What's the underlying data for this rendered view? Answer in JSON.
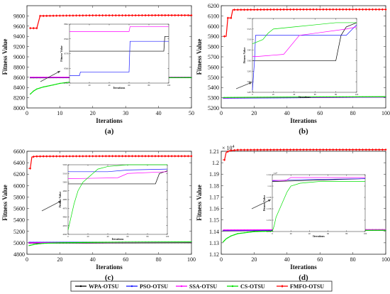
{
  "legend": [
    "WPA-OTSU",
    "PSO-OTSU",
    "SSA-OTSU",
    "CS-OTSU",
    "FMFO-OTSU"
  ],
  "colors": {
    "WPA-OTSU": "#000000",
    "PSO-OTSU": "#1a1aff",
    "SSA-OTSU": "#ff00ff",
    "CS-OTSU": "#00e000",
    "FMFO-OTSU": "#ff0000"
  },
  "chart_data": [
    {
      "type": "line",
      "panel_label": "(a)",
      "xlabel": "Iterations",
      "ylabel": "Fitness Value",
      "xlim": [
        0,
        50
      ],
      "ylim": [
        8000,
        10000
      ],
      "xticks": [
        0,
        10,
        20,
        30,
        40,
        50
      ],
      "yticks": [
        8000,
        8200,
        8400,
        8600,
        8800,
        9000,
        9200,
        9400,
        9600,
        9800
      ],
      "exponent": "",
      "series": [
        {
          "name": "WPA-OTSU",
          "x": [
            1,
            10,
            20,
            30,
            40,
            50
          ],
          "y": [
            8590,
            8591,
            8591,
            8592,
            8592,
            8593
          ]
        },
        {
          "name": "PSO-OTSU",
          "x": [
            1,
            10,
            20,
            30,
            40,
            50
          ],
          "y": [
            8597,
            8597,
            8597,
            8598,
            8598,
            8598
          ]
        },
        {
          "name": "SSA-OTSU",
          "x": [
            1,
            10,
            20,
            30,
            40,
            50
          ],
          "y": [
            8599,
            8599,
            8600,
            8600,
            8601,
            8601
          ]
        },
        {
          "name": "CS-OTSU",
          "x": [
            1,
            2,
            3,
            5,
            8,
            10,
            15,
            20,
            25,
            30,
            40,
            50
          ],
          "y": [
            8270,
            8330,
            8370,
            8410,
            8450,
            8480,
            8520,
            8550,
            8570,
            8585,
            8592,
            8596
          ]
        },
        {
          "name": "FMFO-OTSU",
          "x": [
            1,
            2,
            3,
            4,
            5,
            10,
            20,
            30,
            40,
            50
          ],
          "y": [
            9560,
            9560,
            9560,
            9800,
            9800,
            9805,
            9810,
            9810,
            9812,
            9812
          ]
        }
      ],
      "inset": {
        "xlabel": "Iterations",
        "ylabel": "Fitness Value",
        "xlim": [
          0,
          100
        ],
        "ylim": [
          8554,
          8602
        ],
        "xticks": [
          0,
          20,
          40,
          60,
          80,
          100
        ],
        "yticks": [
          8554,
          8566,
          8578,
          8590,
          8602
        ],
        "exponent": "",
        "series": [
          {
            "name": "WPA-OTSU",
            "x": [
              0,
              60,
              95,
              96,
              100
            ],
            "y": [
              8580,
              8580,
              8580,
              8592,
              8592
            ]
          },
          {
            "name": "PSO-OTSU",
            "x": [
              0,
              10,
              11,
              60,
              61,
              100
            ],
            "y": [
              8560,
              8560,
              8563,
              8563,
              8588,
              8588
            ]
          },
          {
            "name": "SSA-OTSU",
            "x": [
              0,
              60,
              61,
              100
            ],
            "y": [
              8596,
              8596,
              8600,
              8600
            ]
          }
        ]
      }
    },
    {
      "type": "line",
      "panel_label": "(b)",
      "xlabel": "Iterations",
      "ylabel": "Fitness Value",
      "xlim": [
        0,
        100
      ],
      "ylim": [
        5200,
        6200
      ],
      "xticks": [
        0,
        20,
        40,
        60,
        80,
        100
      ],
      "yticks": [
        5200,
        5300,
        5400,
        5500,
        5600,
        5700,
        5800,
        5900,
        6000,
        6100,
        6200
      ],
      "exponent": "",
      "series": [
        {
          "name": "WPA-OTSU",
          "x": [
            1,
            20,
            40,
            60,
            80,
            100
          ],
          "y": [
            5300,
            5301,
            5302,
            5303,
            5305,
            5308
          ]
        },
        {
          "name": "PSO-OTSU",
          "x": [
            1,
            20,
            40,
            60,
            80,
            100
          ],
          "y": [
            5295,
            5298,
            5300,
            5302,
            5304,
            5306
          ]
        },
        {
          "name": "SSA-OTSU",
          "x": [
            1,
            20,
            40,
            60,
            80,
            100
          ],
          "y": [
            5299,
            5301,
            5303,
            5304,
            5306,
            5307
          ]
        },
        {
          "name": "CS-OTSU",
          "x": [
            1,
            20,
            40,
            60,
            80,
            100
          ],
          "y": [
            5302,
            5304,
            5306,
            5308,
            5309,
            5310
          ]
        },
        {
          "name": "FMFO-OTSU",
          "x": [
            1,
            3,
            4,
            6,
            7,
            10,
            30,
            60,
            100
          ],
          "y": [
            5900,
            5900,
            6080,
            6080,
            6160,
            6160,
            6162,
            6163,
            6163
          ]
        }
      ],
      "inset": {
        "xlabel": "Iterations",
        "ylabel": "Fitness Value",
        "xlim": [
          0,
          100
        ],
        "ylim": [
          5285,
          5320
        ],
        "xticks": [
          0,
          20,
          40,
          60,
          80,
          100
        ],
        "yticks": [
          5285,
          5290,
          5295,
          5300,
          5305,
          5310,
          5315,
          5320
        ],
        "exponent": "",
        "series": [
          {
            "name": "WPA-OTSU",
            "x": [
              0,
              80,
              85,
              90,
              100
            ],
            "y": [
              5300,
              5300,
              5312,
              5316,
              5318
            ]
          },
          {
            "name": "PSO-OTSU",
            "x": [
              0,
              1,
              2,
              3,
              90,
              100
            ],
            "y": [
              5286,
              5293,
              5300,
              5312,
              5312,
              5317
            ]
          },
          {
            "name": "SSA-OTSU",
            "x": [
              0,
              5,
              30,
              45,
              60,
              90,
              100
            ],
            "y": [
              5302,
              5302,
              5303,
              5312,
              5313,
              5315,
              5316
            ]
          },
          {
            "name": "CS-OTSU",
            "x": [
              0,
              10,
              15,
              20,
              40,
              60,
              80,
              100
            ],
            "y": [
              5308,
              5310,
              5313,
              5315,
              5316,
              5317,
              5318,
              5318
            ]
          }
        ]
      }
    },
    {
      "type": "line",
      "panel_label": "(c)",
      "xlabel": "Iterations",
      "ylabel": "Fitness Value",
      "xlim": [
        0,
        100
      ],
      "ylim": [
        4800,
        6600
      ],
      "xticks": [
        0,
        20,
        40,
        60,
        80,
        100
      ],
      "yticks": [
        4800,
        5000,
        5200,
        5400,
        5600,
        5800,
        6000,
        6200,
        6400,
        6600
      ],
      "exponent": "",
      "series": [
        {
          "name": "WPA-OTSU",
          "x": [
            1,
            50,
            100
          ],
          "y": [
            4995,
            4998,
            5002
          ]
        },
        {
          "name": "PSO-OTSU",
          "x": [
            1,
            50,
            100
          ],
          "y": [
            5008,
            5010,
            5012
          ]
        },
        {
          "name": "SSA-OTSU",
          "x": [
            1,
            50,
            100
          ],
          "y": [
            5000,
            5005,
            5010
          ]
        },
        {
          "name": "CS-OTSU",
          "x": [
            1,
            5,
            10,
            20,
            40,
            60,
            100
          ],
          "y": [
            4950,
            4975,
            4990,
            5000,
            5008,
            5012,
            5015
          ]
        },
        {
          "name": "FMFO-OTSU",
          "x": [
            1,
            2,
            3,
            5,
            10,
            50,
            100
          ],
          "y": [
            6300,
            6300,
            6500,
            6510,
            6512,
            6515,
            6515
          ]
        }
      ],
      "inset": {
        "xlabel": "Iterations",
        "ylabel": "Fitness Value",
        "xlim": [
          0,
          100
        ],
        "ylim": [
          4940,
          5020
        ],
        "xticks": [
          0,
          20,
          40,
          60,
          80,
          100
        ],
        "yticks": [
          4940,
          4950,
          4960,
          4970,
          4980,
          4990,
          5000,
          5010,
          5020
        ],
        "exponent": "",
        "series": [
          {
            "name": "WPA-OTSU",
            "x": [
              0,
              88,
              92,
              100
            ],
            "y": [
              4998,
              4998,
              5010,
              5013
            ]
          },
          {
            "name": "PSO-OTSU",
            "x": [
              0,
              40,
              60,
              100
            ],
            "y": [
              5012,
              5012,
              5014,
              5015
            ]
          },
          {
            "name": "SSA-OTSU",
            "x": [
              0,
              50,
              60,
              100
            ],
            "y": [
              5004,
              5005,
              5010,
              5012
            ]
          },
          {
            "name": "CS-OTSU",
            "x": [
              0,
              3,
              6,
              10,
              15,
              20,
              25,
              30,
              40,
              60,
              100
            ],
            "y": [
              4945,
              4960,
              4975,
              4990,
              5000,
              5005,
              5010,
              5015,
              5018,
              5020,
              5020
            ]
          }
        ]
      }
    },
    {
      "type": "line",
      "panel_label": "(d)",
      "xlabel": "Iterations",
      "ylabel": "Fitness Value",
      "xlim": [
        0,
        100
      ],
      "ylim": [
        1.12,
        1.21
      ],
      "xticks": [
        0,
        20,
        40,
        60,
        80,
        100
      ],
      "yticks": [
        1.12,
        1.13,
        1.14,
        1.15,
        1.16,
        1.17,
        1.18,
        1.19,
        1.2,
        1.21
      ],
      "exponent": "× 10^4",
      "series": [
        {
          "name": "WPA-OTSU",
          "x": [
            1,
            50,
            100
          ],
          "y": [
            1.1405,
            1.1408,
            1.141
          ]
        },
        {
          "name": "PSO-OTSU",
          "x": [
            1,
            50,
            100
          ],
          "y": [
            1.1408,
            1.141,
            1.1412
          ]
        },
        {
          "name": "SSA-OTSU",
          "x": [
            1,
            50,
            100
          ],
          "y": [
            1.1412,
            1.1414,
            1.1415
          ]
        },
        {
          "name": "CS-OTSU",
          "x": [
            1,
            3,
            6,
            10,
            20,
            40,
            60,
            100
          ],
          "y": [
            1.1305,
            1.1335,
            1.136,
            1.138,
            1.1398,
            1.1405,
            1.1408,
            1.141
          ]
        },
        {
          "name": "FMFO-OTSU",
          "x": [
            1,
            2,
            3,
            5,
            10,
            50,
            100
          ],
          "y": [
            1.2025,
            1.2025,
            1.209,
            1.2105,
            1.2112,
            1.2114,
            1.2114
          ]
        }
      ],
      "inset": {
        "xlabel": "Iterations",
        "ylabel": "Fitness Value",
        "xlim": [
          0,
          100
        ],
        "ylim": [
          1.132,
          1.142
        ],
        "xticks": [
          0,
          20,
          40,
          60,
          80,
          100
        ],
        "yticks": [
          1.132,
          1.134,
          1.136,
          1.138,
          1.14,
          1.142
        ],
        "exponent": "×10^4",
        "series": [
          {
            "name": "WPA-OTSU",
            "x": [
              0,
              100
            ],
            "y": [
              1.1408,
              1.1413
            ]
          },
          {
            "name": "PSO-OTSU",
            "x": [
              0,
              20,
              100
            ],
            "y": [
              1.1409,
              1.1411,
              1.1413
            ]
          },
          {
            "name": "SSA-OTSU",
            "x": [
              0,
              15,
              20,
              100
            ],
            "y": [
              1.141,
              1.141,
              1.1415,
              1.1415
            ]
          },
          {
            "name": "CS-OTSU",
            "x": [
              0,
              2,
              4,
              8,
              12,
              16,
              20,
              30,
              50,
              100
            ],
            "y": [
              1.132,
              1.133,
              1.1345,
              1.136,
              1.1375,
              1.139,
              1.14,
              1.1405,
              1.1408,
              1.1408
            ]
          }
        ]
      }
    }
  ]
}
